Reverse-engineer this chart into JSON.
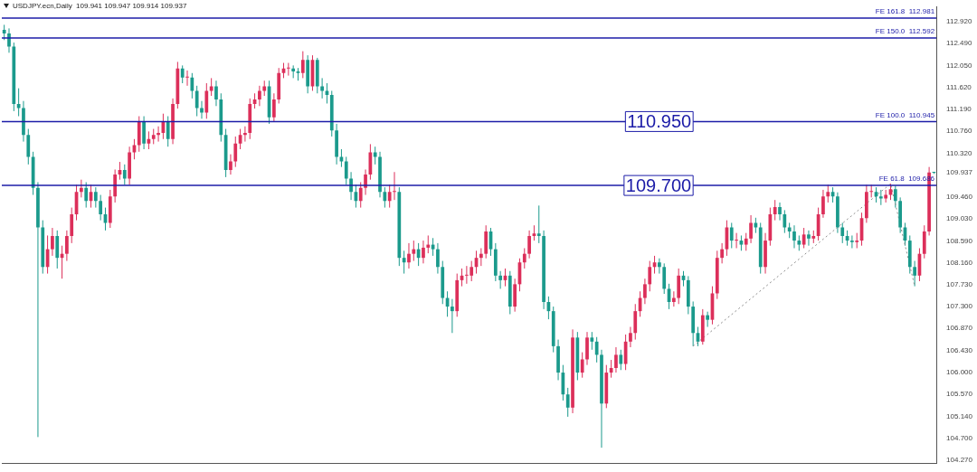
{
  "chart_data": {
    "type": "candlestick",
    "title": "USDJPY.ecn,Daily  109.941 109.947 109.914 109.937",
    "categories": [
      null,
      null,
      null,
      null,
      null,
      null,
      null,
      null,
      null,
      null,
      null,
      null,
      null,
      null,
      null,
      null,
      null,
      null,
      null,
      null,
      null,
      null,
      null,
      null,
      null,
      null,
      null,
      null,
      null,
      null,
      null,
      null,
      null,
      null,
      null,
      null,
      null,
      null,
      null,
      null,
      null,
      null,
      null,
      null,
      null,
      null,
      null,
      null,
      null,
      null,
      null,
      null,
      null,
      null,
      null,
      null,
      null,
      null,
      null,
      null,
      null,
      null,
      null,
      null,
      null,
      null,
      null,
      null,
      null,
      null,
      null,
      null,
      null,
      null,
      null,
      null,
      null,
      null,
      null,
      null,
      null,
      null,
      null,
      null,
      null,
      null,
      null,
      null,
      null,
      null,
      null,
      null,
      null,
      null,
      null,
      null,
      null,
      null,
      null,
      null,
      null,
      null,
      null,
      null,
      null,
      null,
      null,
      null,
      null,
      null,
      null,
      null,
      null,
      null,
      null,
      null,
      null,
      null,
      null,
      null,
      null,
      null,
      null,
      null,
      null,
      null,
      null,
      null,
      null,
      null,
      null,
      null,
      null,
      null,
      null,
      null,
      null,
      null,
      null,
      null,
      null,
      null,
      null,
      null,
      null,
      null,
      null,
      null,
      null,
      null,
      null,
      null,
      null,
      null,
      null,
      null,
      null,
      null,
      null,
      null,
      null,
      null,
      null,
      null,
      null,
      null,
      null,
      null,
      null,
      null,
      null,
      null,
      null,
      null,
      null,
      null,
      null,
      null,
      null,
      null,
      null,
      null,
      null,
      null,
      null,
      null,
      null,
      null,
      null,
      null,
      null,
      null,
      null,
      null
    ],
    "colors": [
      "#1b9a8c",
      "#1b9a8c",
      "#1b9a8c",
      "#1b9a8c",
      "#1b9a8c",
      "#1b9a8c",
      "#1b9a8c",
      "#1b9a8c",
      "#1b9a8c",
      "#dc2f5a",
      "#dc2f5a",
      "#1b9a8c",
      "#dc2f5a",
      "#dc2f5a",
      "#dc2f5a",
      "#dc2f5a",
      "#dc2f5a",
      "#1b9a8c",
      "#dc2f5a",
      "#1b9a8c",
      "#1b9a8c",
      "#1b9a8c",
      "#dc2f5a",
      "#dc2f5a",
      "#dc2f5a",
      "#1b9a8c",
      "#dc2f5a",
      "#dc2f5a",
      "#dc2f5a",
      "#1b9a8c",
      "#dc2f5a",
      "#dc2f5a",
      "#dc2f5a",
      "#dc2f5a",
      "#1b9a8c",
      "#dc2f5a",
      "#dc2f5a",
      "#1b9a8c",
      "#dc2f5a",
      "#1b9a8c",
      "#1b9a8c",
      "#1b9a8c",
      "#dc2f5a",
      "#dc2f5a",
      "#1b9a8c",
      "#1b9a8c",
      "#1b9a8c",
      "#dc2f5a",
      "#dc2f5a",
      "#dc2f5a",
      "#dc2f5a",
      "#dc2f5a",
      "#dc2f5a",
      "#dc2f5a",
      "#dc2f5a",
      "#1b9a8c",
      "#dc2f5a",
      "#dc2f5a",
      "#dc2f5a",
      "#dc2f5a",
      "#1b9a8c",
      "#1b9a8c",
      "#dc2f5a",
      "#1b9a8c",
      "#dc2f5a",
      "#1b9a8c",
      "#1b9a8c",
      "#1b9a8c",
      "#1b9a8c",
      "#1b9a8c",
      "#1b9a8c",
      "#1b9a8c",
      "#1b9a8c",
      "#1b9a8c",
      "#dc2f5a",
      "#dc2f5a",
      "#dc2f5a",
      "#1b9a8c",
      "#1b9a8c",
      "#1b9a8c",
      "#dc2f5a",
      "#dc2f5a",
      "#1b9a8c",
      "#1b9a8c",
      "#dc2f5a",
      "#dc2f5a",
      "#1b9a8c",
      "#dc2f5a",
      "#dc2f5a",
      "#1b9a8c",
      "#1b9a8c",
      "#1b9a8c",
      "#1b9a8c",
      "#1b9a8c",
      "#dc2f5a",
      "#dc2f5a",
      "#dc2f5a",
      "#dc2f5a",
      "#dc2f5a",
      "#dc2f5a",
      "#dc2f5a",
      "#1b9a8c",
      "#1b9a8c",
      "#1b9a8c",
      "#dc2f5a",
      "#1b9a8c",
      "#dc2f5a",
      "#dc2f5a",
      "#dc2f5a",
      "#dc2f5a",
      "#dc2f5a",
      "#1b9a8c",
      "#1b9a8c",
      "#1b9a8c",
      "#1b9a8c",
      "#1b9a8c",
      "#1b9a8c",
      "#1b9a8c",
      "#dc2f5a",
      "#1b9a8c",
      "#dc2f5a",
      "#dc2f5a",
      "#1b9a8c",
      "#1b9a8c",
      "#1b9a8c",
      "#dc2f5a",
      "#dc2f5a",
      "#dc2f5a",
      "#1b9a8c",
      "#dc2f5a",
      "#dc2f5a",
      "#dc2f5a",
      "#dc2f5a",
      "#dc2f5a",
      "#dc2f5a",
      "#dc2f5a",
      "#1b9a8c",
      "#1b9a8c",
      "#1b9a8c",
      "#dc2f5a",
      "#dc2f5a",
      "#1b9a8c",
      "#1b9a8c",
      "#1b9a8c",
      "#1b9a8c",
      "#dc2f5a",
      "#1b9a8c",
      "#dc2f5a",
      "#dc2f5a",
      "#dc2f5a",
      "#dc2f5a",
      "#1b9a8c",
      "#dc2f5a",
      "#1b9a8c",
      "#dc2f5a",
      "#dc2f5a",
      "#1b9a8c",
      "#1b9a8c",
      "#dc2f5a",
      "#dc2f5a",
      "#dc2f5a",
      "#1b9a8c",
      "#1b9a8c",
      "#1b9a8c",
      "#1b9a8c",
      "#1b9a8c",
      "#dc2f5a",
      "#1b9a8c",
      "#dc2f5a",
      "#dc2f5a",
      "#dc2f5a",
      "#dc2f5a",
      "#1b9a8c",
      "#1b9a8c",
      "#1b9a8c",
      "#1b9a8c",
      "#1b9a8c",
      "#dc2f5a",
      "#dc2f5a",
      "#dc2f5a",
      "#dc2f5a",
      "#1b9a8c",
      "#1b9a8c",
      "#dc2f5a",
      "#dc2f5a",
      "#1b9a8c",
      "#1b9a8c",
      "#1b9a8c",
      "#1b9a8c",
      "#1b9a8c",
      "#dc2f5a",
      "#dc2f5a",
      "#dc2f5a",
      "#1b9a8c"
    ],
    "ohlc": [
      [
        112.75,
        112.85,
        112.55,
        112.68
      ],
      [
        112.68,
        112.78,
        112.3,
        112.42
      ],
      [
        112.42,
        112.5,
        111.15,
        111.29
      ],
      [
        111.29,
        111.6,
        111.05,
        111.21
      ],
      [
        111.21,
        111.35,
        110.55,
        110.68
      ],
      [
        110.68,
        110.8,
        110.1,
        110.25
      ],
      [
        110.25,
        110.35,
        109.5,
        109.64
      ],
      [
        109.64,
        109.75,
        104.73,
        108.86
      ],
      [
        108.86,
        109.0,
        107.95,
        108.08
      ],
      [
        108.08,
        108.7,
        107.95,
        108.43
      ],
      [
        108.43,
        108.85,
        108.3,
        108.69
      ],
      [
        108.69,
        108.8,
        108.05,
        108.26
      ],
      [
        108.26,
        108.5,
        107.85,
        108.34
      ],
      [
        108.34,
        108.8,
        108.2,
        108.69
      ],
      [
        108.69,
        109.25,
        108.55,
        109.12
      ],
      [
        109.12,
        109.7,
        109.0,
        109.56
      ],
      [
        109.56,
        109.8,
        109.45,
        109.64
      ],
      [
        109.64,
        109.75,
        109.25,
        109.38
      ],
      [
        109.38,
        109.7,
        109.25,
        109.56
      ],
      [
        109.56,
        109.65,
        109.25,
        109.38
      ],
      [
        109.38,
        109.5,
        109.0,
        109.12
      ],
      [
        109.12,
        109.25,
        108.8,
        108.95
      ],
      [
        108.95,
        109.6,
        108.85,
        109.47
      ],
      [
        109.47,
        110.0,
        109.35,
        109.9
      ],
      [
        109.9,
        110.15,
        109.8,
        109.99
      ],
      [
        109.99,
        110.1,
        109.7,
        109.82
      ],
      [
        109.82,
        110.45,
        109.7,
        110.34
      ],
      [
        110.34,
        110.6,
        110.2,
        110.48
      ],
      [
        110.48,
        111.05,
        110.35,
        110.95
      ],
      [
        110.95,
        111.05,
        110.4,
        110.51
      ],
      [
        110.51,
        110.75,
        110.4,
        110.6
      ],
      [
        110.6,
        110.8,
        110.5,
        110.68
      ],
      [
        110.68,
        110.85,
        110.55,
        110.72
      ],
      [
        110.72,
        111.1,
        110.6,
        110.95
      ],
      [
        110.95,
        111.05,
        110.45,
        110.6
      ],
      [
        110.6,
        111.4,
        110.5,
        111.29
      ],
      [
        111.29,
        112.12,
        111.2,
        111.99
      ],
      [
        111.99,
        112.05,
        111.7,
        111.81
      ],
      [
        111.81,
        111.95,
        111.65,
        111.81
      ],
      [
        111.81,
        111.9,
        111.4,
        111.55
      ],
      [
        111.55,
        111.65,
        111.05,
        111.21
      ],
      [
        111.21,
        111.35,
        111.0,
        111.12
      ],
      [
        111.12,
        111.7,
        111.0,
        111.55
      ],
      [
        111.55,
        111.8,
        111.45,
        111.64
      ],
      [
        111.64,
        111.75,
        111.25,
        111.38
      ],
      [
        111.38,
        111.5,
        110.55,
        110.68
      ],
      [
        110.68,
        110.8,
        109.85,
        109.99
      ],
      [
        109.99,
        110.3,
        109.9,
        110.16
      ],
      [
        110.16,
        110.65,
        110.05,
        110.51
      ],
      [
        110.51,
        110.8,
        110.4,
        110.68
      ],
      [
        110.68,
        110.85,
        110.55,
        110.72
      ],
      [
        110.72,
        111.4,
        110.6,
        111.29
      ],
      [
        111.29,
        111.5,
        111.2,
        111.38
      ],
      [
        111.38,
        111.65,
        111.25,
        111.55
      ],
      [
        111.55,
        111.75,
        111.45,
        111.64
      ],
      [
        111.64,
        111.75,
        110.9,
        111.03
      ],
      [
        111.03,
        111.5,
        110.95,
        111.38
      ],
      [
        111.38,
        112.0,
        111.3,
        111.9
      ],
      [
        111.9,
        112.1,
        111.8,
        111.99
      ],
      [
        111.99,
        112.1,
        111.85,
        111.99
      ],
      [
        111.99,
        112.05,
        111.8,
        111.93
      ],
      [
        111.93,
        112.0,
        111.75,
        111.9
      ],
      [
        111.9,
        112.33,
        111.8,
        112.16
      ],
      [
        112.16,
        112.25,
        111.5,
        111.64
      ],
      [
        111.64,
        112.25,
        111.55,
        112.16
      ],
      [
        112.16,
        112.2,
        111.5,
        111.64
      ],
      [
        111.64,
        111.8,
        111.4,
        111.55
      ],
      [
        111.55,
        111.7,
        111.3,
        111.47
      ],
      [
        111.47,
        111.55,
        110.65,
        110.77
      ],
      [
        110.77,
        110.9,
        110.1,
        110.25
      ],
      [
        110.25,
        110.4,
        110.05,
        110.16
      ],
      [
        110.16,
        110.25,
        109.7,
        109.82
      ],
      [
        109.82,
        109.95,
        109.4,
        109.56
      ],
      [
        109.56,
        109.7,
        109.25,
        109.38
      ],
      [
        109.38,
        109.75,
        109.25,
        109.64
      ],
      [
        109.64,
        110.0,
        109.5,
        109.9
      ],
      [
        109.9,
        110.5,
        109.8,
        110.34
      ],
      [
        110.34,
        110.45,
        110.1,
        110.25
      ],
      [
        110.25,
        110.35,
        109.45,
        109.56
      ],
      [
        109.56,
        109.65,
        109.25,
        109.38
      ],
      [
        109.38,
        109.7,
        109.25,
        109.56
      ],
      [
        109.56,
        109.95,
        109.4,
        109.56
      ],
      [
        109.56,
        109.65,
        108.1,
        108.26
      ],
      [
        108.26,
        108.4,
        107.95,
        108.17
      ],
      [
        108.17,
        108.55,
        108.05,
        108.34
      ],
      [
        108.34,
        108.6,
        108.2,
        108.43
      ],
      [
        108.43,
        108.55,
        108.1,
        108.26
      ],
      [
        108.26,
        108.6,
        108.15,
        108.46
      ],
      [
        108.46,
        108.7,
        108.35,
        108.52
      ],
      [
        108.52,
        108.65,
        108.3,
        108.43
      ],
      [
        108.43,
        108.55,
        107.95,
        108.08
      ],
      [
        108.08,
        108.2,
        107.35,
        107.47
      ],
      [
        107.47,
        107.6,
        107.1,
        107.3
      ],
      [
        107.3,
        107.45,
        106.78,
        107.21
      ],
      [
        107.21,
        107.95,
        107.1,
        107.82
      ],
      [
        107.82,
        108.05,
        107.7,
        107.91
      ],
      [
        107.91,
        108.1,
        107.75,
        107.91
      ],
      [
        107.91,
        108.2,
        107.8,
        108.08
      ],
      [
        108.08,
        108.4,
        107.95,
        108.26
      ],
      [
        108.26,
        108.45,
        108.1,
        108.34
      ],
      [
        108.34,
        108.9,
        108.25,
        108.78
      ],
      [
        108.78,
        108.85,
        108.3,
        108.43
      ],
      [
        108.43,
        108.55,
        107.8,
        107.91
      ],
      [
        107.91,
        108.0,
        107.65,
        107.82
      ],
      [
        107.82,
        108.05,
        107.7,
        107.91
      ],
      [
        107.91,
        108.0,
        107.15,
        107.3
      ],
      [
        107.3,
        107.85,
        107.2,
        107.74
      ],
      [
        107.74,
        108.25,
        107.6,
        108.17
      ],
      [
        108.17,
        108.45,
        108.05,
        108.34
      ],
      [
        108.34,
        108.8,
        108.25,
        108.69
      ],
      [
        108.69,
        108.9,
        108.6,
        108.74
      ],
      [
        108.74,
        109.29,
        108.55,
        108.69
      ],
      [
        108.69,
        108.8,
        107.25,
        107.39
      ],
      [
        107.39,
        107.5,
        107.05,
        107.21
      ],
      [
        107.21,
        107.3,
        106.4,
        106.52
      ],
      [
        106.52,
        106.65,
        105.85,
        106.0
      ],
      [
        106.0,
        106.15,
        105.45,
        105.57
      ],
      [
        105.57,
        105.7,
        105.13,
        105.31
      ],
      [
        105.31,
        106.85,
        105.2,
        106.69
      ],
      [
        106.69,
        106.8,
        105.85,
        106.0
      ],
      [
        106.0,
        106.4,
        105.9,
        106.26
      ],
      [
        106.26,
        106.8,
        106.15,
        106.69
      ],
      [
        106.69,
        106.8,
        106.45,
        106.61
      ],
      [
        106.61,
        106.7,
        106.2,
        106.35
      ],
      [
        106.35,
        106.45,
        104.52,
        105.39
      ],
      [
        105.39,
        106.15,
        105.3,
        106.0
      ],
      [
        106.0,
        106.25,
        105.9,
        106.09
      ],
      [
        106.09,
        106.5,
        106.0,
        106.35
      ],
      [
        106.35,
        106.45,
        106.05,
        106.17
      ],
      [
        106.17,
        106.75,
        106.05,
        106.61
      ],
      [
        106.61,
        106.9,
        106.5,
        106.78
      ],
      [
        106.78,
        107.35,
        106.65,
        107.21
      ],
      [
        107.21,
        107.6,
        107.1,
        107.47
      ],
      [
        107.47,
        107.85,
        107.35,
        107.74
      ],
      [
        107.74,
        108.2,
        107.6,
        108.08
      ],
      [
        108.08,
        108.3,
        107.95,
        108.17
      ],
      [
        108.17,
        108.25,
        107.95,
        108.08
      ],
      [
        108.08,
        108.15,
        107.55,
        107.65
      ],
      [
        107.65,
        107.75,
        107.25,
        107.39
      ],
      [
        107.39,
        107.6,
        107.3,
        107.47
      ],
      [
        107.47,
        108.05,
        107.35,
        107.91
      ],
      [
        107.91,
        108.0,
        107.7,
        107.82
      ],
      [
        107.82,
        107.9,
        107.15,
        107.3
      ],
      [
        107.3,
        107.4,
        106.52,
        106.78
      ],
      [
        106.78,
        106.9,
        106.52,
        106.61
      ],
      [
        106.61,
        107.25,
        106.55,
        107.13
      ],
      [
        107.13,
        107.2,
        106.9,
        107.04
      ],
      [
        107.04,
        107.7,
        106.95,
        107.56
      ],
      [
        107.56,
        108.4,
        107.45,
        108.26
      ],
      [
        108.26,
        108.55,
        108.15,
        108.43
      ],
      [
        108.43,
        109.0,
        108.3,
        108.86
      ],
      [
        108.86,
        108.95,
        108.45,
        108.6
      ],
      [
        108.6,
        108.75,
        108.45,
        108.6
      ],
      [
        108.6,
        108.7,
        108.4,
        108.52
      ],
      [
        108.52,
        108.75,
        108.4,
        108.64
      ],
      [
        108.64,
        109.1,
        108.55,
        108.95
      ],
      [
        108.95,
        109.05,
        108.75,
        108.86
      ],
      [
        108.86,
        108.95,
        107.95,
        108.08
      ],
      [
        108.08,
        108.75,
        107.95,
        108.6
      ],
      [
        108.6,
        109.25,
        108.5,
        109.12
      ],
      [
        109.12,
        109.4,
        109.0,
        109.26
      ],
      [
        109.26,
        109.35,
        109.0,
        109.12
      ],
      [
        109.12,
        109.2,
        108.75,
        108.86
      ],
      [
        108.86,
        108.95,
        108.65,
        108.78
      ],
      [
        108.78,
        108.9,
        108.45,
        108.6
      ],
      [
        108.6,
        108.7,
        108.4,
        108.52
      ],
      [
        108.52,
        108.85,
        108.45,
        108.72
      ],
      [
        108.72,
        108.8,
        108.5,
        108.64
      ],
      [
        108.64,
        108.8,
        108.55,
        108.69
      ],
      [
        108.69,
        109.25,
        108.6,
        109.12
      ],
      [
        109.12,
        109.6,
        109.05,
        109.47
      ],
      [
        109.47,
        109.7,
        109.35,
        109.56
      ],
      [
        109.56,
        109.65,
        109.35,
        109.47
      ],
      [
        109.47,
        109.55,
        108.75,
        108.86
      ],
      [
        108.86,
        108.95,
        108.55,
        108.69
      ],
      [
        108.69,
        108.8,
        108.5,
        108.6
      ],
      [
        108.6,
        108.7,
        108.45,
        108.57
      ],
      [
        108.57,
        108.75,
        108.45,
        108.6
      ],
      [
        108.6,
        109.15,
        108.5,
        109.04
      ],
      [
        109.04,
        109.7,
        108.95,
        109.56
      ],
      [
        109.56,
        109.7,
        109.45,
        109.56
      ],
      [
        109.56,
        109.65,
        109.35,
        109.47
      ],
      [
        109.47,
        109.6,
        109.3,
        109.43
      ],
      [
        109.43,
        109.6,
        109.35,
        109.5
      ],
      [
        109.5,
        109.72,
        109.4,
        109.61
      ],
      [
        109.61,
        109.68,
        109.25,
        109.38
      ],
      [
        109.38,
        109.45,
        108.75,
        108.86
      ],
      [
        108.86,
        108.95,
        108.5,
        108.6
      ],
      [
        108.6,
        108.7,
        107.95,
        108.08
      ],
      [
        108.08,
        108.2,
        107.7,
        107.91
      ],
      [
        107.91,
        108.45,
        107.8,
        108.34
      ],
      [
        108.34,
        108.9,
        108.25,
        108.78
      ],
      [
        108.78,
        110.05,
        108.7,
        109.94
      ],
      [
        109.941,
        109.947,
        109.914,
        109.937
      ]
    ],
    "series": [
      {
        "type": "line",
        "color": "#8c8c8c",
        "line_style": "dotted",
        "values": [
          null,
          null,
          null,
          null,
          null,
          null,
          null,
          null,
          null,
          null,
          null,
          null,
          null,
          null,
          null,
          null,
          null,
          null,
          null,
          null,
          null,
          null,
          null,
          null,
          null,
          null,
          null,
          null,
          null,
          null,
          null,
          null,
          null,
          null,
          null,
          null,
          null,
          null,
          null,
          null,
          null,
          null,
          null,
          null,
          null,
          null,
          null,
          null,
          null,
          null,
          null,
          null,
          null,
          null,
          null,
          null,
          null,
          null,
          null,
          null,
          null,
          null,
          null,
          null,
          null,
          null,
          null,
          null,
          null,
          null,
          null,
          null,
          null,
          null,
          null,
          null,
          null,
          null,
          null,
          null,
          null,
          null,
          null,
          null,
          null,
          null,
          null,
          null,
          null,
          null,
          null,
          null,
          null,
          null,
          null,
          null,
          null,
          null,
          null,
          null,
          null,
          null,
          null,
          null,
          null,
          null,
          null,
          null,
          null,
          null,
          null,
          null,
          null,
          null,
          null,
          null,
          null,
          null,
          null,
          null,
          null,
          null,
          null,
          null,
          null,
          null,
          null,
          null,
          null,
          null,
          null,
          null,
          null,
          null,
          null,
          null,
          null,
          null,
          null,
          null,
          null,
          null,
          null,
          106.52,
          null,
          null,
          null,
          null,
          null,
          null,
          null,
          null,
          null,
          null,
          null,
          null,
          null,
          null,
          null,
          null,
          null,
          null,
          null,
          null,
          null,
          null,
          null,
          null,
          null,
          null,
          null,
          null,
          null,
          null,
          null,
          null,
          null,
          null,
          null,
          null,
          null,
          null,
          null,
          null,
          109.72,
          null,
          null,
          null,
          null,
          107.7,
          null,
          null,
          null,
          null
        ]
      }
    ],
    "ylim": [
      104.22,
      113.2
    ],
    "yticks": [
      {
        "value": 104.27,
        "label": "104.270"
      },
      {
        "value": 104.7,
        "label": "104.700"
      },
      {
        "value": 105.14,
        "label": "105.140"
      },
      {
        "value": 105.57,
        "label": "105.570"
      },
      {
        "value": 106.0,
        "label": "106.000"
      },
      {
        "value": 106.43,
        "label": "106.430"
      },
      {
        "value": 106.87,
        "label": "106.870"
      },
      {
        "value": 107.3,
        "label": "107.300"
      },
      {
        "value": 107.73,
        "label": "107.730"
      },
      {
        "value": 108.16,
        "label": "108.160"
      },
      {
        "value": 108.59,
        "label": "108.590"
      },
      {
        "value": 109.03,
        "label": "109.030"
      },
      {
        "value": 109.46,
        "label": "109.460"
      },
      {
        "value": 109.937,
        "label": "109.937"
      },
      {
        "value": 110.32,
        "label": "110.320"
      },
      {
        "value": 110.76,
        "label": "110.760"
      },
      {
        "value": 111.19,
        "label": "111.190"
      },
      {
        "value": 111.62,
        "label": "111.620"
      },
      {
        "value": 112.05,
        "label": "112.050"
      },
      {
        "value": 112.49,
        "label": "112.490"
      },
      {
        "value": 112.92,
        "label": "112.920"
      }
    ],
    "tick_labels": "y",
    "ref_lines": [
      {
        "axis": "y",
        "value": 112.981,
        "label": "FE 161.8  112.981",
        "color": "#1c1ca8"
      },
      {
        "axis": "y",
        "value": 112.592,
        "label": "FE 150.0  112.592",
        "color": "#1c1ca8"
      },
      {
        "axis": "y",
        "value": 110.945,
        "label": "FE 100.0  110.945",
        "color": "#1c1ca8"
      },
      {
        "axis": "y",
        "value": 109.686,
        "label": "FE 61.8  109.686",
        "color": "#1c1ca8"
      }
    ],
    "annotations": [
      "110.950",
      "109.700"
    ]
  }
}
